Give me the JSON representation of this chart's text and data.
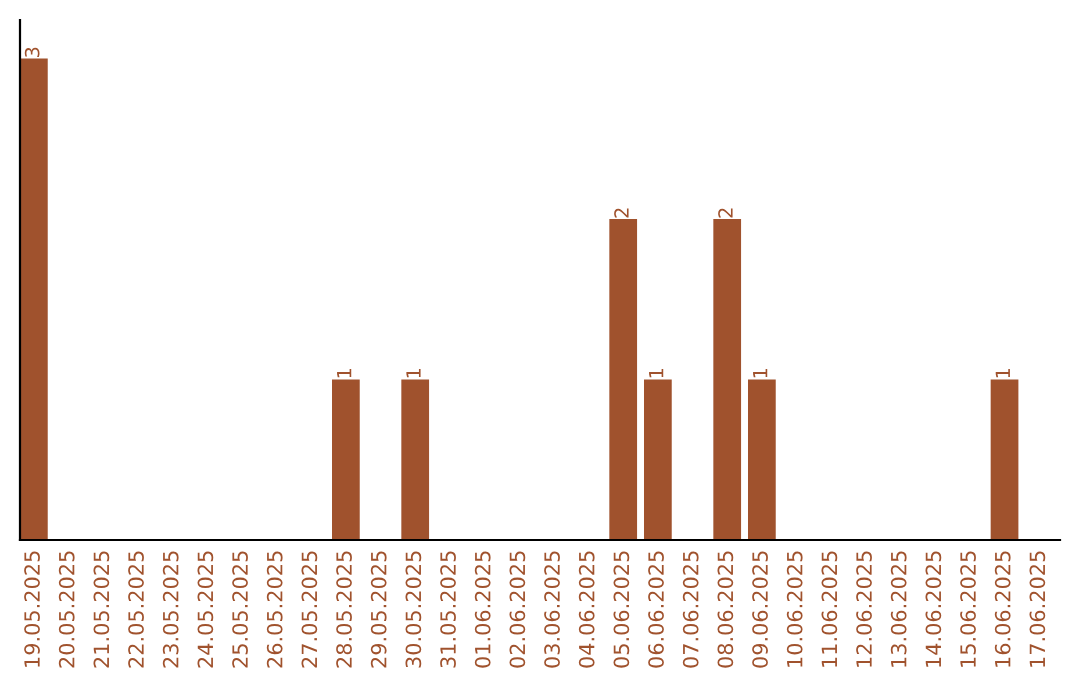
{
  "chart_data": {
    "type": "bar",
    "categories": [
      "19.05.2025",
      "20.05.2025",
      "21.05.2025",
      "22.05.2025",
      "23.05.2025",
      "24.05.2025",
      "25.05.2025",
      "26.05.2025",
      "27.05.2025",
      "28.05.2025",
      "29.05.2025",
      "30.05.2025",
      "31.05.2025",
      "01.06.2025",
      "02.06.2025",
      "03.06.2025",
      "04.06.2025",
      "05.06.2025",
      "06.06.2025",
      "07.06.2025",
      "08.06.2025",
      "09.06.2025",
      "10.06.2025",
      "11.06.2025",
      "12.06.2025",
      "13.06.2025",
      "14.06.2025",
      "15.06.2025",
      "16.06.2025",
      "17.06.2025"
    ],
    "values": [
      3,
      0,
      0,
      0,
      0,
      0,
      0,
      0,
      0,
      1,
      0,
      1,
      0,
      0,
      0,
      0,
      0,
      2,
      1,
      0,
      2,
      1,
      0,
      0,
      0,
      0,
      0,
      0,
      1,
      0
    ],
    "value_labels": [
      "3",
      null,
      null,
      null,
      null,
      null,
      null,
      null,
      null,
      "1",
      null,
      "1",
      null,
      null,
      null,
      null,
      null,
      "2",
      "1",
      null,
      "2",
      "1",
      null,
      null,
      null,
      null,
      null,
      null,
      "1",
      null
    ],
    "color": "#a0522d",
    "tick_labels": "x",
    "grid": false,
    "legend": false
  }
}
